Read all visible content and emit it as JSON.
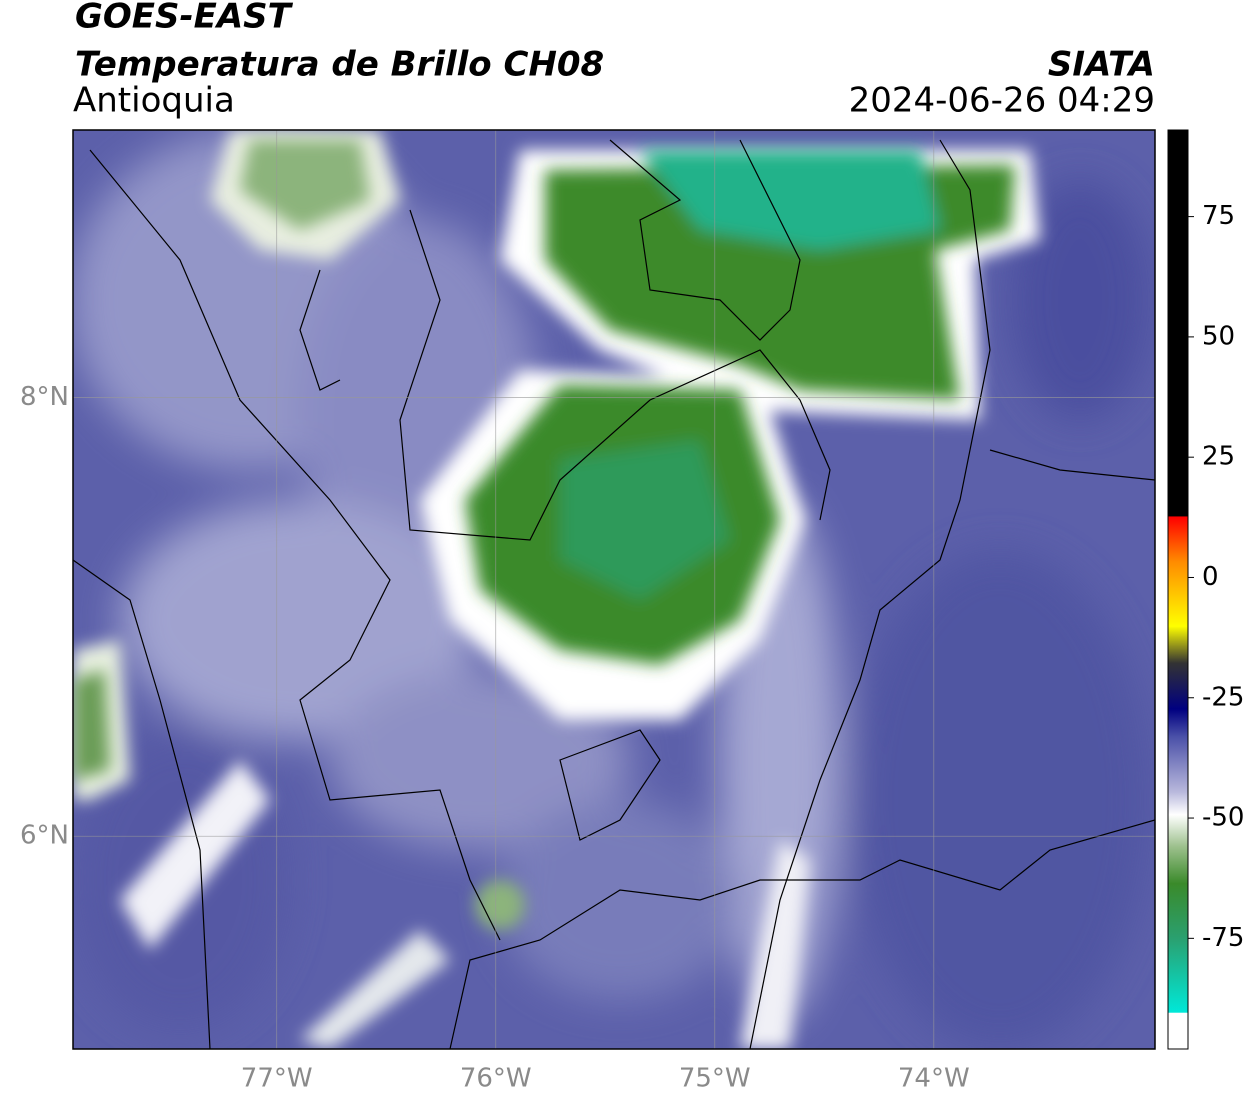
{
  "header": {
    "satellite": "GOES-EAST",
    "product": "Temperatura de Brillo CH08",
    "source": "SIATA",
    "region": "Antioquia",
    "datetime": "2024-06-26 04:29"
  },
  "chart_data": {
    "type": "map",
    "xlim": [
      -77.93,
      -72.99
    ],
    "ylim": [
      5.03,
      9.22
    ],
    "xticks": [
      {
        "value": -77,
        "label": "77°W"
      },
      {
        "value": -76,
        "label": "76°W"
      },
      {
        "value": -75,
        "label": "75°W"
      },
      {
        "value": -74,
        "label": "74°W"
      }
    ],
    "yticks": [
      {
        "value": 8,
        "label": "8°N"
      },
      {
        "value": 6,
        "label": "6°N"
      }
    ],
    "grid": true,
    "colorbar": {
      "lim": [
        -98,
        93
      ],
      "ticks": [
        75,
        50,
        25,
        0,
        -25,
        -50,
        -75
      ]
    }
  }
}
